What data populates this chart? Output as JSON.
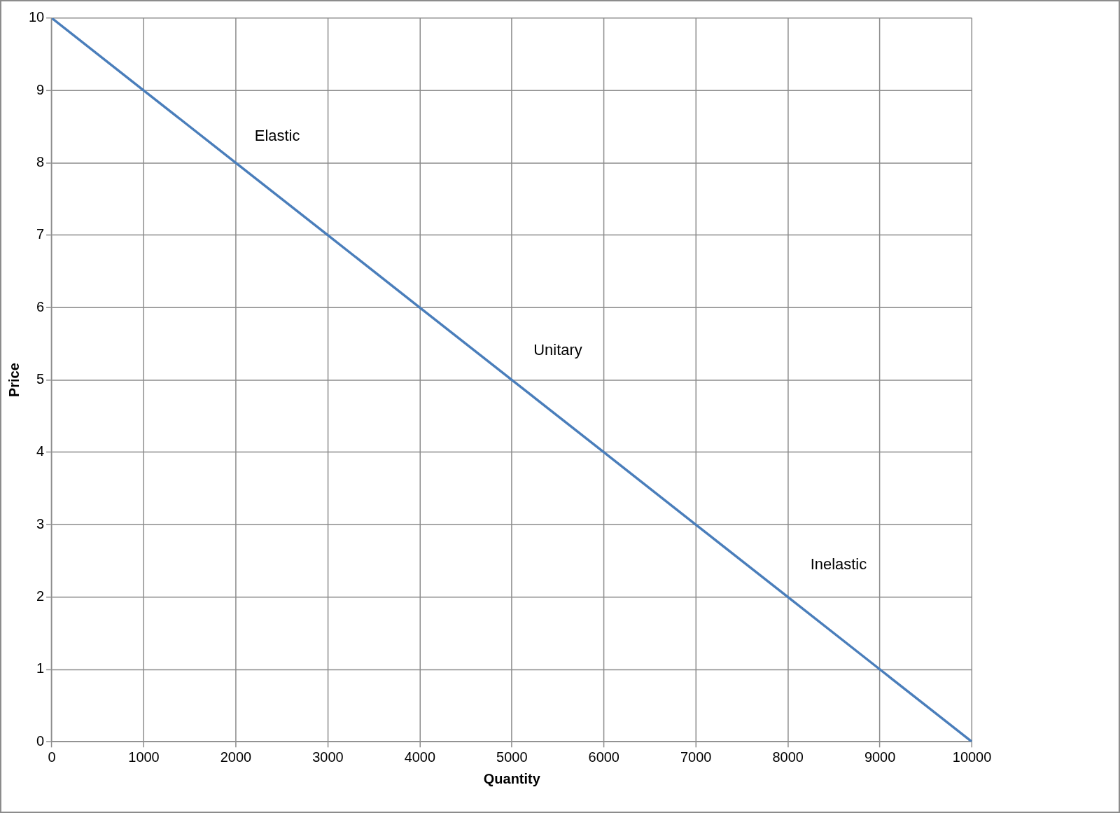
{
  "chart_data": {
    "type": "line",
    "xlabel": "Quantity",
    "ylabel": "Price",
    "x": [
      0,
      1000,
      2000,
      3000,
      4000,
      5000,
      6000,
      7000,
      8000,
      9000,
      10000
    ],
    "series": [
      {
        "color": "#4a7ebb",
        "values": [
          10,
          9,
          8,
          7,
          6,
          5,
          4,
          3,
          2,
          1,
          0
        ]
      }
    ],
    "xlim": [
      0,
      10000
    ],
    "xticks": [
      0,
      1000,
      2000,
      3000,
      4000,
      5000,
      6000,
      7000,
      8000,
      9000,
      10000
    ],
    "ylim": [
      0,
      10
    ],
    "yticks": [
      0,
      1,
      2,
      3,
      4,
      5,
      6,
      7,
      8,
      9,
      10
    ],
    "grid": true,
    "legend": false,
    "marker": "none",
    "line_style": "solid",
    "annotations": [
      "Elastic",
      "Unitary",
      "Inelastic"
    ]
  }
}
